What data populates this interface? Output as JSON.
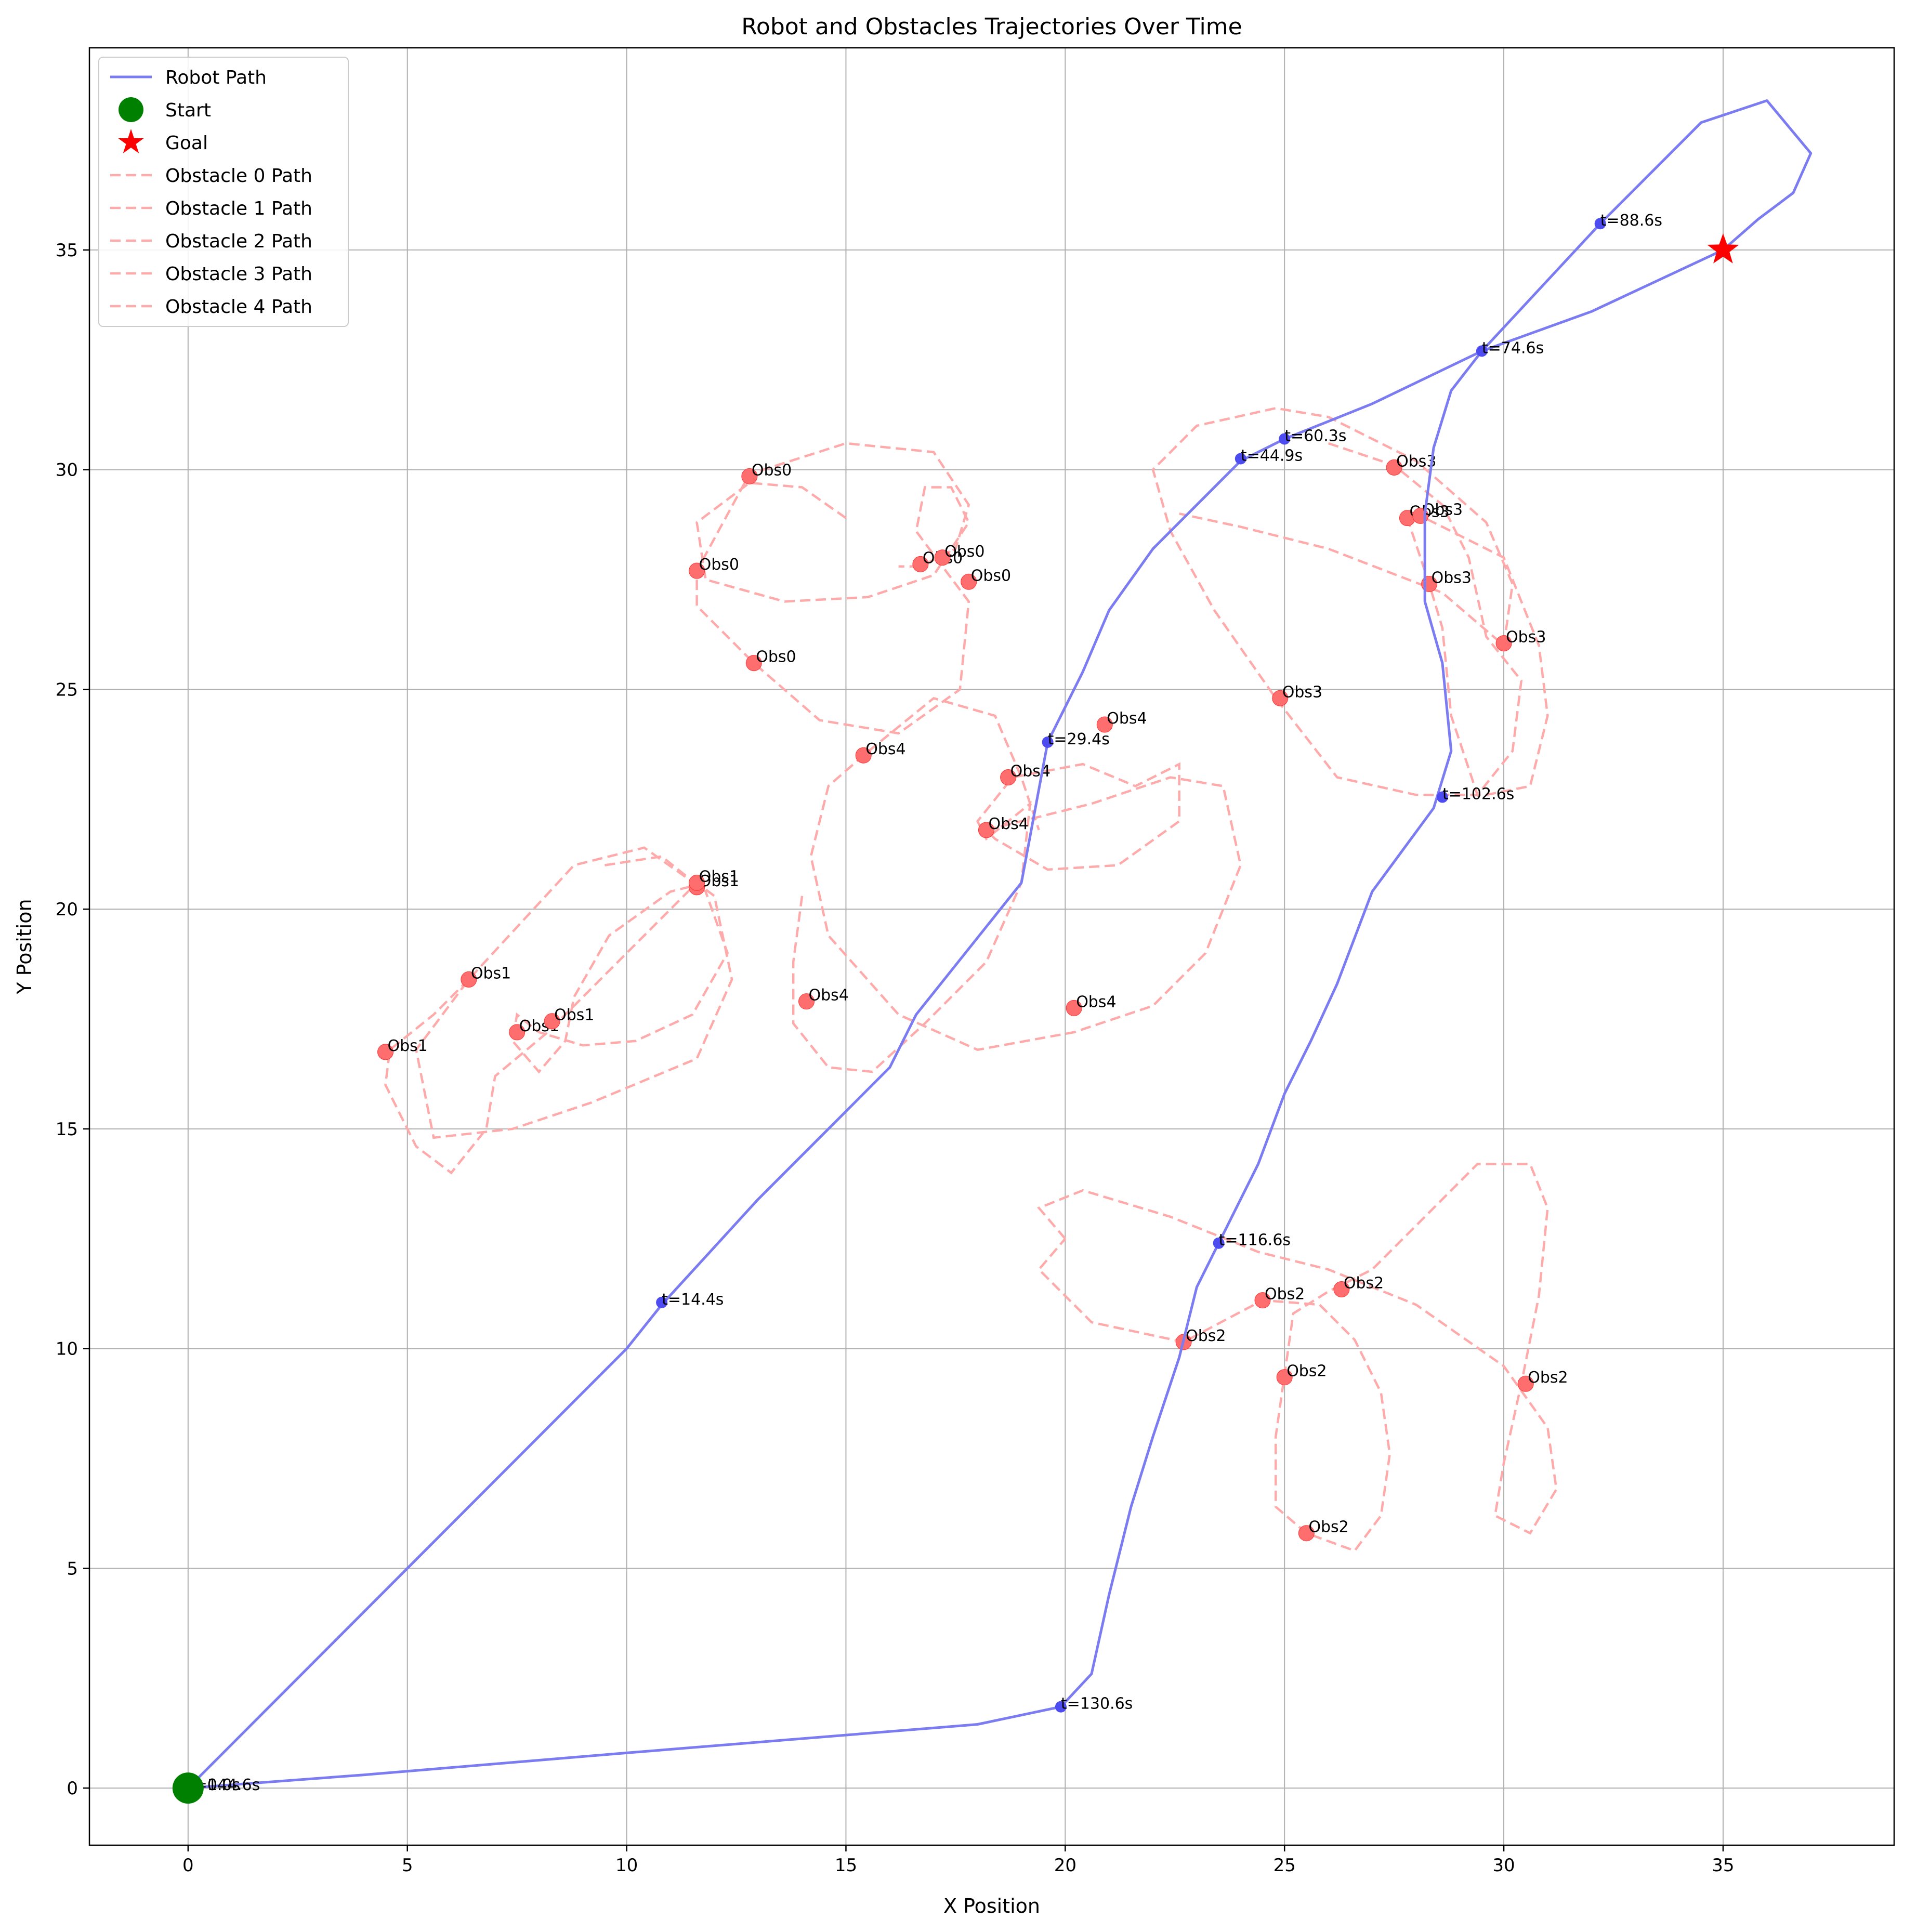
{
  "chart_data": {
    "type": "line",
    "title": "Robot and Obstacles Trajectories Over Time",
    "xlabel": "X Position",
    "ylabel": "Y Position",
    "xlim": [
      -2.25,
      38.9
    ],
    "ylim": [
      -1.3,
      39.6
    ],
    "x_ticks": [
      0,
      5,
      10,
      15,
      20,
      25,
      30,
      35
    ],
    "y_ticks": [
      0,
      5,
      10,
      15,
      20,
      25,
      30,
      35
    ],
    "grid": true,
    "legend_position": "upper-left",
    "colors": {
      "robot": "#7b7bf2",
      "robot_marker": "#4c4cf0",
      "obstacle_path": "#ffaaaa",
      "obstacle_marker": "#ff6e6e",
      "start": "#008000",
      "goal": "#ff0000"
    },
    "legend": [
      "Robot Path",
      "Start",
      "Goal",
      "Obstacle 0 Path",
      "Obstacle 1 Path",
      "Obstacle 2 Path",
      "Obstacle 3 Path",
      "Obstacle 4 Path"
    ],
    "start": {
      "x": 0,
      "y": 0
    },
    "goal": {
      "x": 35,
      "y": 35
    },
    "robot_path": {
      "name": "Robot Path",
      "points": [
        [
          0,
          0
        ],
        [
          5,
          5
        ],
        [
          10,
          10
        ],
        [
          10.8,
          11.0
        ],
        [
          13,
          13.4
        ],
        [
          15,
          15.4
        ],
        [
          16,
          16.4
        ],
        [
          16.6,
          17.6
        ],
        [
          17.4,
          18.6
        ],
        [
          18.2,
          19.6
        ],
        [
          19,
          20.6
        ],
        [
          19.6,
          23.8
        ],
        [
          20.4,
          25.4
        ],
        [
          21,
          26.8
        ],
        [
          22,
          28.2
        ],
        [
          23,
          29.2
        ],
        [
          24,
          30.2
        ],
        [
          25,
          30.7
        ],
        [
          27,
          31.5
        ],
        [
          29.5,
          32.7
        ],
        [
          32.2,
          35.6
        ],
        [
          34.5,
          37.9
        ],
        [
          36,
          38.4
        ],
        [
          37,
          37.2
        ],
        [
          36.6,
          36.3
        ],
        [
          35.8,
          35.7
        ],
        [
          35,
          35.0
        ],
        [
          32,
          33.6
        ],
        [
          29.5,
          32.7
        ],
        [
          28.8,
          31.8
        ],
        [
          28.4,
          30.5
        ],
        [
          28.2,
          29.0
        ],
        [
          28.2,
          27.0
        ],
        [
          28.6,
          25.6
        ],
        [
          28.8,
          23.6
        ],
        [
          28.4,
          22.3
        ],
        [
          27,
          20.4
        ],
        [
          26.2,
          18.3
        ],
        [
          25.6,
          17.0
        ],
        [
          25,
          15.8
        ],
        [
          24.4,
          14.2
        ],
        [
          23.5,
          12.4
        ],
        [
          23,
          11.4
        ],
        [
          22.6,
          9.8
        ],
        [
          22,
          8.0
        ],
        [
          21.5,
          6.4
        ],
        [
          21,
          4.4
        ],
        [
          20.6,
          2.6
        ],
        [
          19.9,
          1.85
        ],
        [
          18,
          1.45
        ],
        [
          10,
          0.8
        ],
        [
          4,
          0.3
        ],
        [
          0,
          0
        ]
      ]
    },
    "robot_time_markers": [
      {
        "x": 0,
        "y": 0,
        "label": "t=144.6s"
      },
      {
        "x": 0,
        "y": 0,
        "label": "t=0.0s"
      },
      {
        "x": 10.8,
        "y": 11.05,
        "label": "t=14.4s"
      },
      {
        "x": 19.6,
        "y": 23.8,
        "label": "t=29.4s"
      },
      {
        "x": 24,
        "y": 30.25,
        "label": "t=44.9s"
      },
      {
        "x": 25,
        "y": 30.7,
        "label": "t=60.3s"
      },
      {
        "x": 29.5,
        "y": 32.7,
        "label": "t=74.6s"
      },
      {
        "x": 32.2,
        "y": 35.6,
        "label": "t=88.6s"
      },
      {
        "x": 28.6,
        "y": 22.55,
        "label": "t=102.6s"
      },
      {
        "x": 23.5,
        "y": 12.4,
        "label": "t=116.6s"
      },
      {
        "x": 19.9,
        "y": 1.85,
        "label": "t=130.6s"
      }
    ],
    "obstacles": [
      {
        "name": "Obstacle 0 Path",
        "marker_label": "Obs0",
        "path": [
          [
            15,
            28.9
          ],
          [
            14,
            29.6
          ],
          [
            12.8,
            29.7
          ],
          [
            11.6,
            28.8
          ],
          [
            11.8,
            27.5
          ],
          [
            13.6,
            27.0
          ],
          [
            15.5,
            27.1
          ],
          [
            17,
            27.6
          ],
          [
            17.8,
            28.8
          ],
          [
            17.4,
            29.6
          ],
          [
            16.8,
            29.6
          ],
          [
            16.6,
            28.6
          ],
          [
            17.2,
            27.8
          ],
          [
            17.8,
            27.0
          ],
          [
            17.6,
            25.0
          ],
          [
            16.2,
            24.0
          ],
          [
            14.4,
            24.3
          ],
          [
            12.9,
            25.6
          ],
          [
            11.6,
            26.9
          ],
          [
            11.6,
            27.7
          ],
          [
            12.8,
            29.9
          ],
          [
            15,
            30.6
          ],
          [
            17,
            30.4
          ],
          [
            17.8,
            29.2
          ],
          [
            17.5,
            28.2
          ],
          [
            16.7,
            27.8
          ],
          [
            16.2,
            27.8
          ]
        ],
        "markers": [
          [
            12.8,
            29.85
          ],
          [
            11.6,
            27.7
          ],
          [
            12.9,
            25.6
          ],
          [
            16.7,
            27.85
          ],
          [
            17.2,
            28.0
          ],
          [
            17.8,
            27.45
          ]
        ]
      },
      {
        "name": "Obstacle 1 Path",
        "marker_label": "Obs1",
        "path": [
          [
            9.5,
            21.0
          ],
          [
            10.8,
            21.2
          ],
          [
            11.8,
            20.4
          ],
          [
            12.3,
            19.0
          ],
          [
            11.5,
            17.6
          ],
          [
            10.2,
            17.0
          ],
          [
            9,
            16.9
          ],
          [
            8,
            17.2
          ],
          [
            7.5,
            17.6
          ],
          [
            7.4,
            17.0
          ],
          [
            8.0,
            16.3
          ],
          [
            8.6,
            17.0
          ],
          [
            8.8,
            18.0
          ],
          [
            9.6,
            19.4
          ],
          [
            11,
            20.4
          ],
          [
            11.6,
            20.55
          ],
          [
            10.4,
            21.4
          ],
          [
            8.8,
            21.0
          ],
          [
            6.4,
            18.4
          ],
          [
            5.2,
            16.8
          ],
          [
            5.6,
            14.8
          ],
          [
            7.4,
            15.0
          ],
          [
            9.2,
            15.6
          ],
          [
            11.6,
            16.6
          ],
          [
            12.4,
            18.4
          ],
          [
            12.0,
            20.3
          ],
          [
            11.6,
            20.6
          ],
          [
            10,
            19.0
          ],
          [
            8.2,
            17.2
          ],
          [
            7.0,
            16.2
          ],
          [
            6.8,
            15.0
          ],
          [
            6.0,
            14.0
          ],
          [
            5.2,
            14.6
          ],
          [
            4.5,
            16.0
          ],
          [
            4.6,
            16.8
          ],
          [
            5.6,
            17.6
          ],
          [
            6.4,
            18.4
          ]
        ],
        "markers": [
          [
            4.5,
            16.75
          ],
          [
            6.4,
            18.4
          ],
          [
            7.5,
            17.2
          ],
          [
            8.3,
            17.45
          ],
          [
            11.6,
            20.5
          ],
          [
            11.6,
            20.6
          ]
        ]
      },
      {
        "name": "Obstacle 2 Path",
        "marker_label": "Obs2",
        "path": [
          [
            20,
            12.5
          ],
          [
            19.4,
            13.2
          ],
          [
            20.4,
            13.6
          ],
          [
            22.4,
            13.0
          ],
          [
            24.4,
            12.2
          ],
          [
            26,
            11.8
          ],
          [
            28,
            11.0
          ],
          [
            30,
            9.6
          ],
          [
            31,
            8.2
          ],
          [
            31.2,
            6.8
          ],
          [
            30.6,
            5.8
          ],
          [
            29.8,
            6.2
          ],
          [
            30,
            7.4
          ],
          [
            30.4,
            9.2
          ],
          [
            30.8,
            11.2
          ],
          [
            31,
            13.2
          ],
          [
            30.6,
            14.2
          ],
          [
            29.4,
            14.2
          ],
          [
            28.2,
            13.0
          ],
          [
            27,
            11.8
          ],
          [
            26,
            11.3
          ],
          [
            25.2,
            10.8
          ],
          [
            25.0,
            9.4
          ],
          [
            24.8,
            8.0
          ],
          [
            24.8,
            6.4
          ],
          [
            25.5,
            5.8
          ],
          [
            26.6,
            5.4
          ],
          [
            27.2,
            6.2
          ],
          [
            27.4,
            7.6
          ],
          [
            27.2,
            9.0
          ],
          [
            26.6,
            10.2
          ],
          [
            25.8,
            11.0
          ],
          [
            24.5,
            11.1
          ],
          [
            22.7,
            10.15
          ],
          [
            20.6,
            10.6
          ],
          [
            19.4,
            11.8
          ],
          [
            20,
            12.5
          ]
        ],
        "markers": [
          [
            22.7,
            10.15
          ],
          [
            24.5,
            11.1
          ],
          [
            26.3,
            11.35
          ],
          [
            25.0,
            9.35
          ],
          [
            30.5,
            9.2
          ],
          [
            25.5,
            5.8
          ]
        ]
      },
      {
        "name": "Obstacle 3 Path",
        "marker_label": "Obs3",
        "path": [
          [
            26,
            30.6
          ],
          [
            27.5,
            30.1
          ],
          [
            28.6,
            29.2
          ],
          [
            29.2,
            28.0
          ],
          [
            29.6,
            26.2
          ],
          [
            30.4,
            25.2
          ],
          [
            30.2,
            23.6
          ],
          [
            29.4,
            22.6
          ],
          [
            28.8,
            24.4
          ],
          [
            28.6,
            26.4
          ],
          [
            28.3,
            27.4
          ],
          [
            27.8,
            28.9
          ],
          [
            28,
            29.0
          ],
          [
            30,
            28.0
          ],
          [
            30.8,
            26.0
          ],
          [
            31.0,
            24.4
          ],
          [
            30.6,
            22.8
          ],
          [
            29.6,
            22.6
          ],
          [
            28.0,
            22.6
          ],
          [
            26.2,
            23.0
          ],
          [
            24.8,
            24.8
          ],
          [
            23.4,
            26.8
          ],
          [
            22.4,
            28.6
          ],
          [
            22.0,
            30.0
          ],
          [
            23.0,
            31.0
          ],
          [
            24.8,
            31.4
          ],
          [
            26.0,
            31.2
          ],
          [
            28.0,
            30.2
          ],
          [
            29.6,
            28.8
          ],
          [
            30.2,
            27.4
          ],
          [
            30.0,
            26.0
          ],
          [
            28.6,
            27.2
          ],
          [
            26.0,
            28.2
          ],
          [
            24.0,
            28.7
          ],
          [
            22.6,
            29.0
          ]
        ],
        "markers": [
          [
            27.5,
            30.05
          ],
          [
            27.8,
            28.9
          ],
          [
            28.1,
            28.95
          ],
          [
            28.3,
            27.4
          ],
          [
            30.0,
            26.05
          ],
          [
            24.9,
            24.8
          ]
        ]
      },
      {
        "name": "Obstacle 4 Path",
        "marker_label": "Obs4",
        "path": [
          [
            14,
            20.3
          ],
          [
            13.8,
            18.8
          ],
          [
            13.8,
            17.4
          ],
          [
            14.6,
            16.4
          ],
          [
            15.6,
            16.3
          ],
          [
            16.8,
            17.4
          ],
          [
            18.2,
            18.8
          ],
          [
            19,
            20.6
          ],
          [
            19.2,
            22.4
          ],
          [
            18.2,
            21.6
          ],
          [
            18,
            22.0
          ],
          [
            18.8,
            23.0
          ],
          [
            20.4,
            23.3
          ],
          [
            21.6,
            22.8
          ],
          [
            22.6,
            23.3
          ],
          [
            22.6,
            22.0
          ],
          [
            21.2,
            21.0
          ],
          [
            19.6,
            20.9
          ],
          [
            18.4,
            21.6
          ],
          [
            18.2,
            21.8
          ],
          [
            20.6,
            22.4
          ],
          [
            22.4,
            23.0
          ],
          [
            23.6,
            22.8
          ],
          [
            24.0,
            21.0
          ],
          [
            23.2,
            19.0
          ],
          [
            22.0,
            17.8
          ],
          [
            20.2,
            17.2
          ],
          [
            18.0,
            16.8
          ],
          [
            16.2,
            17.6
          ],
          [
            14.6,
            19.4
          ],
          [
            14.2,
            21.2
          ],
          [
            14.6,
            22.8
          ],
          [
            15.4,
            23.5
          ],
          [
            17.0,
            24.8
          ],
          [
            18.4,
            24.4
          ],
          [
            19.0,
            23.0
          ],
          [
            19.4,
            21.8
          ]
        ],
        "markers": [
          [
            14.1,
            17.9
          ],
          [
            15.4,
            23.5
          ],
          [
            18.7,
            23.0
          ],
          [
            18.2,
            21.8
          ],
          [
            20.9,
            24.2
          ],
          [
            20.2,
            17.75
          ]
        ]
      }
    ]
  }
}
